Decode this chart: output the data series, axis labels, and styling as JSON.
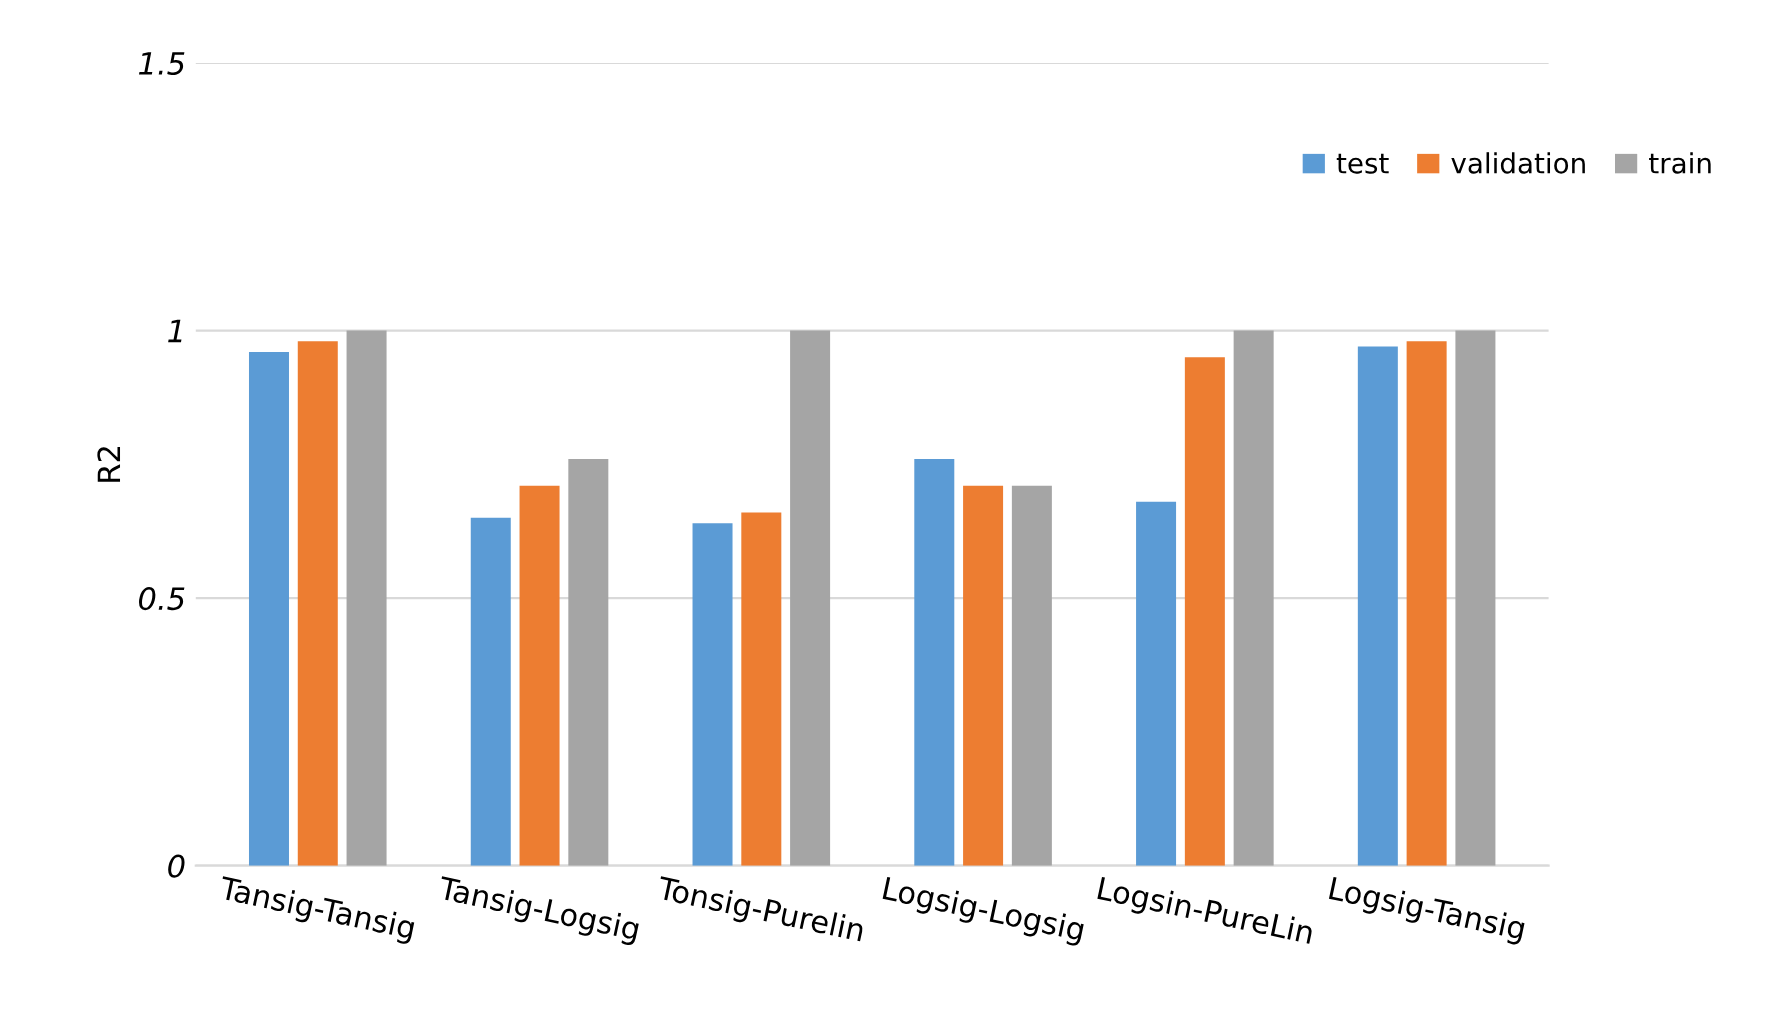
{
  "chart_data": {
    "type": "bar",
    "ylabel": "R2",
    "categories": [
      "Tansig-Tansig",
      "Tansig-Logsig",
      "Tonsig-Purelin",
      "Logsig-Logsig",
      "Logsin-PureLin",
      "Logsig-Tansig"
    ],
    "series": [
      {
        "name": "test",
        "color": "#5b9bd5",
        "values": [
          0.96,
          0.65,
          0.64,
          0.76,
          0.68,
          0.97
        ]
      },
      {
        "name": "validation",
        "color": "#ed7d31",
        "values": [
          0.98,
          0.71,
          0.66,
          0.71,
          0.95,
          0.98
        ]
      },
      {
        "name": "train",
        "color": "#a5a5a5",
        "values": [
          1.0,
          0.76,
          1.0,
          0.71,
          1.0,
          1.0
        ]
      }
    ],
    "ylim": [
      0,
      1.5
    ],
    "yticks": [
      {
        "value": 0,
        "label": "0"
      },
      {
        "value": 0.5,
        "label": "0.5"
      },
      {
        "value": 1,
        "label": "1"
      },
      {
        "value": 1.5,
        "label": "1.5"
      }
    ],
    "grid": "y",
    "legend": "top right"
  }
}
